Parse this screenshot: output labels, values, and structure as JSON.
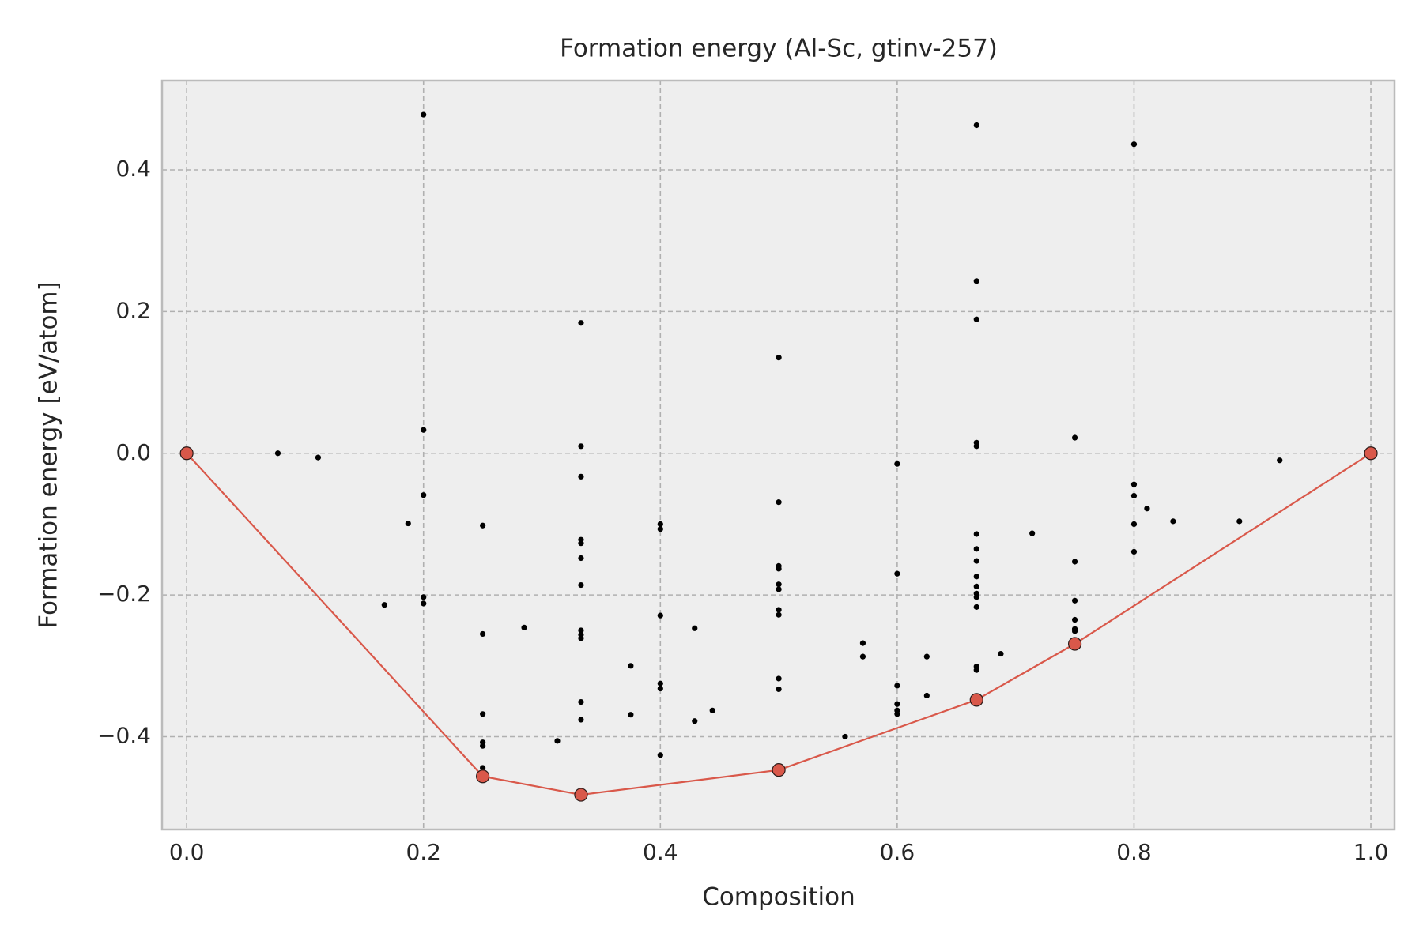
{
  "chart_data": {
    "type": "scatter",
    "title": "Formation energy (Al-Sc, gtinv-257)",
    "x_label": "Composition",
    "y_label": "Formation energy [eV/atom]",
    "xlim": [
      -0.0208,
      1.02
    ],
    "ylim": [
      -0.531,
      0.526
    ],
    "xticks": [
      {
        "value": 0,
        "label": "0.0"
      },
      {
        "value": 0.2,
        "label": "0.2"
      },
      {
        "value": 0.4,
        "label": "0.4"
      },
      {
        "value": 0.6,
        "label": "0.6"
      },
      {
        "value": 0.8,
        "label": "0.8"
      },
      {
        "value": 1,
        "label": "1.0"
      }
    ],
    "yticks": [
      {
        "value": -0.4,
        "label": "−0.4"
      },
      {
        "value": -0.2,
        "label": "−0.2"
      },
      {
        "value": 0,
        "label": "0.0"
      },
      {
        "value": 0.2,
        "label": "0.2"
      },
      {
        "value": 0.4,
        "label": "0.4"
      }
    ],
    "grid": true,
    "series": [
      {
        "color": "#000000",
        "x": [
          0.077,
          0.111,
          0.187,
          0.167,
          0.2,
          0.2,
          0.2,
          0.2,
          0.2,
          0.25,
          0.25,
          0.25,
          0.25,
          0.25,
          0.25,
          0.285,
          0.313,
          0.333,
          0.333,
          0.333,
          0.333,
          0.333,
          0.333,
          0.333,
          0.333,
          0.333,
          0.333,
          0.333,
          0.333,
          0.375,
          0.375,
          0.4,
          0.4,
          0.4,
          0.4,
          0.4,
          0.4,
          0.429,
          0.429,
          0.444,
          0.5,
          0.5,
          0.5,
          0.5,
          0.5,
          0.5,
          0.5,
          0.5,
          0.5,
          0.5,
          0.556,
          0.571,
          0.571,
          0.6,
          0.6,
          0.6,
          0.6,
          0.6,
          0.6,
          0.625,
          0.625,
          0.667,
          0.667,
          0.667,
          0.667,
          0.667,
          0.667,
          0.667,
          0.667,
          0.667,
          0.667,
          0.667,
          0.667,
          0.667,
          0.667,
          0.667,
          0.6875,
          0.714,
          0.75,
          0.75,
          0.75,
          0.75,
          0.75,
          0.75,
          0.8,
          0.8,
          0.8,
          0.8,
          0.8,
          0.811,
          0.833,
          0.889,
          0.923
        ],
        "values": [
          0.0,
          -0.006,
          -0.099,
          -0.214,
          0.478,
          0.033,
          -0.059,
          -0.203,
          -0.212,
          -0.102,
          -0.255,
          -0.368,
          -0.408,
          -0.413,
          -0.444,
          -0.246,
          -0.406,
          0.184,
          0.01,
          -0.033,
          -0.122,
          -0.127,
          -0.148,
          -0.186,
          -0.25,
          -0.256,
          -0.261,
          -0.351,
          -0.376,
          -0.3,
          -0.369,
          -0.1,
          -0.107,
          -0.229,
          -0.325,
          -0.332,
          -0.426,
          -0.247,
          -0.378,
          -0.363,
          0.135,
          -0.069,
          -0.159,
          -0.163,
          -0.185,
          -0.192,
          -0.221,
          -0.228,
          -0.318,
          -0.333,
          -0.4,
          -0.268,
          -0.287,
          -0.015,
          -0.17,
          -0.328,
          -0.354,
          -0.363,
          -0.368,
          -0.287,
          -0.342,
          0.463,
          0.243,
          0.189,
          0.015,
          0.01,
          -0.114,
          -0.135,
          -0.152,
          -0.174,
          -0.188,
          -0.198,
          -0.203,
          -0.217,
          -0.301,
          -0.306,
          -0.283,
          -0.113,
          0.022,
          -0.153,
          -0.208,
          -0.235,
          -0.248,
          -0.251,
          0.436,
          -0.044,
          -0.06,
          -0.1,
          -0.139,
          -0.078,
          -0.096,
          -0.096,
          -0.01
        ]
      },
      {
        "color": "#d9584a",
        "line": true,
        "x": [
          0,
          0.25,
          0.333,
          0.5,
          0.667,
          0.75,
          1
        ],
        "values": [
          0,
          -0.456,
          -0.482,
          -0.447,
          -0.348,
          -0.269,
          0
        ]
      }
    ]
  }
}
